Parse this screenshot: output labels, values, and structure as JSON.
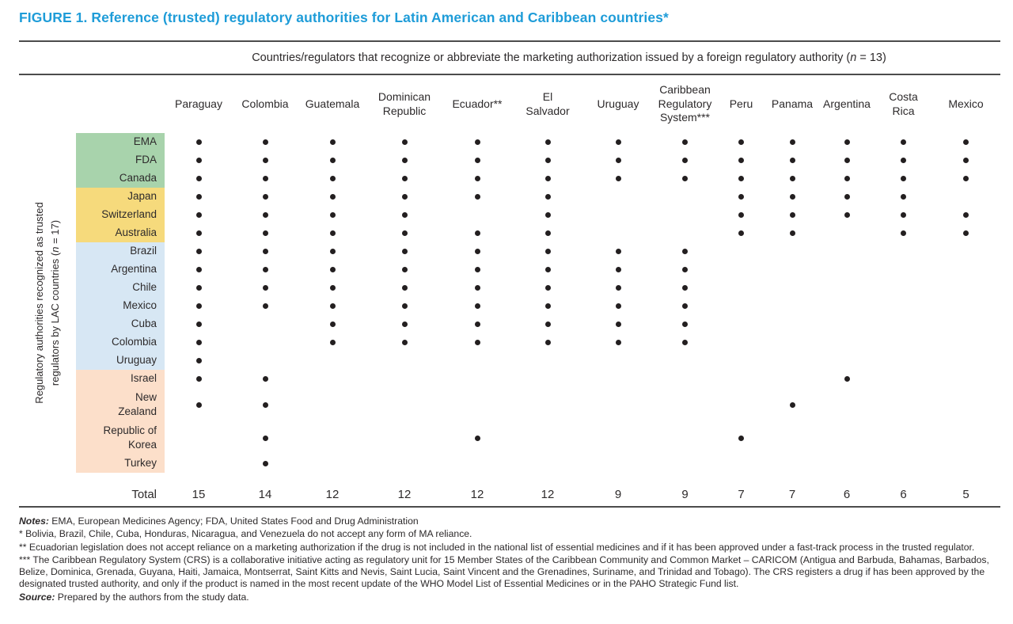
{
  "title": "FIGURE 1. Reference (trusted) regulatory authorities for Latin American and Caribbean countries*",
  "colors": {
    "title_blue": "#1e9cd8",
    "rule": "#4c4c4c",
    "dot": "#231f20",
    "band_green": "#a8d3ac",
    "band_yellow": "#f6da7c",
    "band_blue": "#d7e7f4",
    "band_peach": "#fcdfca"
  },
  "chart_data": {
    "type": "table",
    "subtype": "dot-matrix",
    "title": "FIGURE 1. Reference (trusted) regulatory authorities for Latin American and Caribbean countries*",
    "columns_axis_label": {
      "pre": "Countries/regulators that recognize or abbreviate the marketing authorization issued by a foreign regulatory authority (",
      "var": "n",
      "post": " = 13)"
    },
    "rows_axis_label": {
      "line1": "Regulatory authorities recognized as trusted",
      "line2_pre": "regulators by LAC countries (",
      "var": "n",
      "line2_post": " = 17)"
    },
    "columns": [
      {
        "label": "Paraguay"
      },
      {
        "label": "Colombia"
      },
      {
        "label": "Guatemala"
      },
      {
        "label": "Dominican Republic",
        "display": "Dominican\nRepublic"
      },
      {
        "label": "Ecuador**"
      },
      {
        "label": "El Salvador",
        "display": "El\nSalvador"
      },
      {
        "label": "Uruguay"
      },
      {
        "label": "Caribbean Regulatory System***",
        "display": "Caribbean\nRegulatory\nSystem***"
      },
      {
        "label": "Peru"
      },
      {
        "label": "Panama"
      },
      {
        "label": "Argentina"
      },
      {
        "label": "Costa Rica",
        "display": "Costa\nRica"
      },
      {
        "label": "Mexico"
      }
    ],
    "row_groups": [
      {
        "color_key": "band_green",
        "rows": [
          {
            "label": "EMA",
            "dots": [
              1,
              1,
              1,
              1,
              1,
              1,
              1,
              1,
              1,
              1,
              1,
              1,
              1
            ]
          },
          {
            "label": "FDA",
            "dots": [
              1,
              1,
              1,
              1,
              1,
              1,
              1,
              1,
              1,
              1,
              1,
              1,
              1
            ]
          },
          {
            "label": "Canada",
            "dots": [
              1,
              1,
              1,
              1,
              1,
              1,
              1,
              1,
              1,
              1,
              1,
              1,
              1
            ]
          }
        ]
      },
      {
        "color_key": "band_yellow",
        "rows": [
          {
            "label": "Japan",
            "dots": [
              1,
              1,
              1,
              1,
              1,
              1,
              0,
              0,
              1,
              1,
              1,
              1,
              0
            ]
          },
          {
            "label": "Switzerland",
            "dots": [
              1,
              1,
              1,
              1,
              0,
              1,
              0,
              0,
              1,
              1,
              1,
              1,
              1
            ]
          },
          {
            "label": "Australia",
            "dots": [
              1,
              1,
              1,
              1,
              1,
              1,
              0,
              0,
              1,
              1,
              0,
              1,
              1
            ]
          }
        ]
      },
      {
        "color_key": "band_blue",
        "rows": [
          {
            "label": "Brazil",
            "dots": [
              1,
              1,
              1,
              1,
              1,
              1,
              1,
              1,
              0,
              0,
              0,
              0,
              0
            ]
          },
          {
            "label": "Argentina",
            "dots": [
              1,
              1,
              1,
              1,
              1,
              1,
              1,
              1,
              0,
              0,
              0,
              0,
              0
            ]
          },
          {
            "label": "Chile",
            "dots": [
              1,
              1,
              1,
              1,
              1,
              1,
              1,
              1,
              0,
              0,
              0,
              0,
              0
            ]
          },
          {
            "label": "Mexico",
            "dots": [
              1,
              1,
              1,
              1,
              1,
              1,
              1,
              1,
              0,
              0,
              0,
              0,
              0
            ]
          },
          {
            "label": "Cuba",
            "dots": [
              1,
              0,
              1,
              1,
              1,
              1,
              1,
              1,
              0,
              0,
              0,
              0,
              0
            ]
          },
          {
            "label": "Colombia",
            "dots": [
              1,
              0,
              1,
              1,
              1,
              1,
              1,
              1,
              0,
              0,
              0,
              0,
              0
            ]
          },
          {
            "label": "Uruguay",
            "dots": [
              1,
              0,
              0,
              0,
              0,
              0,
              0,
              0,
              0,
              0,
              0,
              0,
              0
            ]
          }
        ]
      },
      {
        "color_key": "band_peach",
        "rows": [
          {
            "label": "Israel",
            "dots": [
              1,
              1,
              0,
              0,
              0,
              0,
              0,
              0,
              0,
              0,
              1,
              0,
              0
            ]
          },
          {
            "label": "New Zealand",
            "display": "New\nZealand",
            "dots": [
              1,
              1,
              0,
              0,
              0,
              0,
              0,
              0,
              0,
              1,
              0,
              0,
              0
            ]
          },
          {
            "label": "Republic of Korea",
            "display": "Republic of\nKorea",
            "dots": [
              0,
              1,
              0,
              0,
              1,
              0,
              0,
              0,
              1,
              0,
              0,
              0,
              0
            ]
          },
          {
            "label": "Turkey",
            "dots": [
              0,
              1,
              0,
              0,
              0,
              0,
              0,
              0,
              0,
              0,
              0,
              0,
              0
            ]
          }
        ]
      }
    ],
    "total_label": "Total",
    "totals": [
      15,
      14,
      12,
      12,
      12,
      12,
      9,
      9,
      7,
      7,
      6,
      6,
      5
    ]
  },
  "footnotes": {
    "notes_label": "Notes:",
    "notes_text": " EMA, European Medicines Agency; FDA, United States Food and Drug Administration",
    "fn1": "* Bolivia, Brazil, Chile, Cuba, Honduras, Nicaragua, and Venezuela do not accept any form of MA reliance.",
    "fn2": "** Ecuadorian legislation does not accept reliance on a marketing authorization if the drug is not included in the national list of essential medicines and if it has been approved under a fast-track process in the trusted regulator.",
    "fn3": "*** The Caribbean Regulatory System (CRS) is a collaborative initiative acting as regulatory unit for 15 Member States of the Caribbean Community and Common Market – CARICOM (Antigua and Barbuda, Bahamas, Barbados, Belize, Dominica, Grenada, Guyana, Haiti, Jamaica, Montserrat, Saint Kitts and Nevis, Saint Lucia, Saint Vincent and the Grenadines, Suriname, and Trinidad and Tobago). The CRS registers a drug if has been approved by the designated trusted authority, and only if the product is named in the most recent update of the WHO Model List of Essential Medicines or in the PAHO Strategic Fund list.",
    "source_label": "Source:",
    "source_text": " Prepared by the authors from the study data."
  }
}
